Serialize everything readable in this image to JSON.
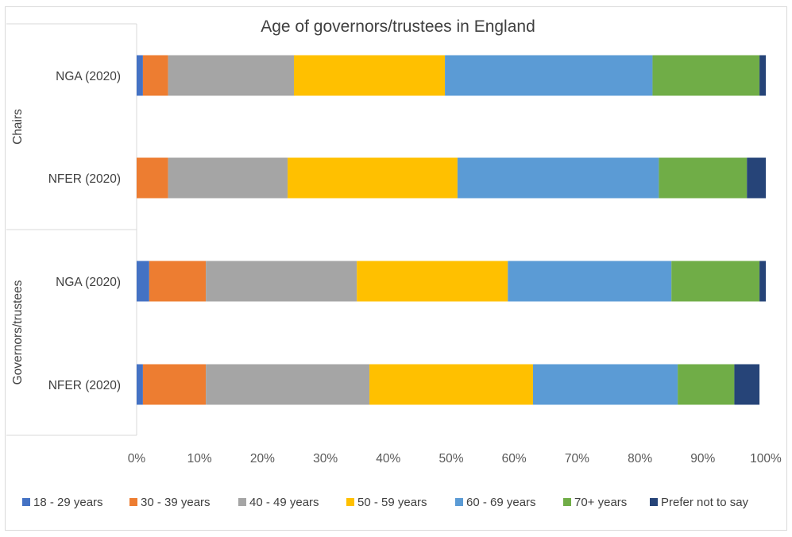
{
  "chart_data": {
    "type": "bar",
    "orientation": "horizontal-stacked-100",
    "title": "Age of governors/trustees in England",
    "groups": [
      {
        "label": "Chairs",
        "categories": [
          "NGA (2020)",
          "NFER (2020)"
        ]
      },
      {
        "label": "Governors/trustees",
        "categories": [
          "NGA (2020)",
          "NFER (2020)"
        ]
      }
    ],
    "categories": [
      "NGA (2020)",
      "NFER (2020)",
      "NGA (2020)",
      "NFER (2020)"
    ],
    "series": [
      {
        "name": "18 - 29 years",
        "color": "#4472c4",
        "values": [
          1,
          0,
          2,
          1
        ]
      },
      {
        "name": "30 - 39 years",
        "color": "#ed7d31",
        "values": [
          4,
          5,
          9,
          10
        ]
      },
      {
        "name": "40 - 49 years",
        "color": "#a5a5a5",
        "values": [
          20,
          19,
          24,
          26
        ]
      },
      {
        "name": "50 - 59 years",
        "color": "#ffc000",
        "values": [
          24,
          27,
          24,
          26
        ]
      },
      {
        "name": "60 - 69 years",
        "color": "#5b9bd5",
        "values": [
          33,
          32,
          26,
          23
        ]
      },
      {
        "name": "70+ years",
        "color": "#70ad47",
        "values": [
          17,
          14,
          14,
          9
        ]
      },
      {
        "name": "Prefer not to say",
        "color": "#264478",
        "values": [
          1,
          3,
          1,
          4
        ]
      }
    ],
    "xlim": [
      0,
      100
    ],
    "x_ticks": [
      "0%",
      "10%",
      "20%",
      "30%",
      "40%",
      "50%",
      "60%",
      "70%",
      "80%",
      "90%",
      "100%"
    ],
    "grid": false,
    "legend_position": "bottom"
  }
}
